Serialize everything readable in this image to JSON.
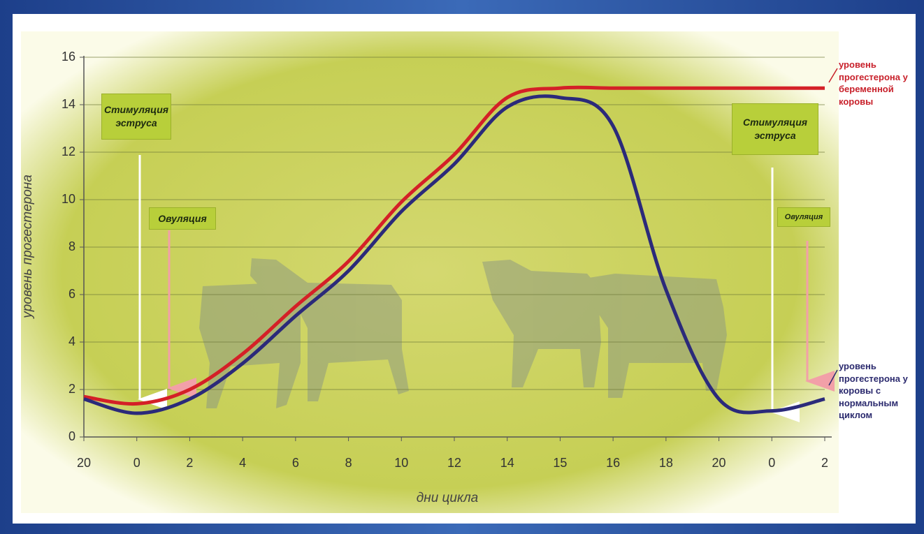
{
  "chart_data": {
    "type": "line",
    "y_label": "уровень прогестерона",
    "x_label": "дни цикла",
    "categories": [
      "20",
      "0",
      "2",
      "4",
      "6",
      "8",
      "10",
      "12",
      "14",
      "15",
      "16",
      "18",
      "20",
      "0",
      "2"
    ],
    "series": [
      {
        "name": "уровень прогестерона у беременной коровы",
        "color": "#d42027",
        "values": [
          1.7,
          1.4,
          2.0,
          3.5,
          5.5,
          7.4,
          9.9,
          11.9,
          14.3,
          14.7,
          14.7,
          14.7,
          14.7,
          14.7,
          14.7
        ]
      },
      {
        "name": "уровень прогестерона у коровы с нормальным циклом",
        "color": "#2b2a7a",
        "values": [
          1.6,
          1.0,
          1.6,
          3.1,
          5.1,
          7.0,
          9.5,
          11.5,
          13.9,
          14.3,
          13.1,
          6.2,
          1.6,
          1.1,
          1.6
        ]
      }
    ],
    "annotations": [
      "Стимуляция эструса",
      "Овуляция",
      "Стимуляция эструса",
      "Овуляция"
    ],
    "ylim": [
      0,
      16
    ],
    "yticks": [
      0,
      2,
      4,
      6,
      8,
      10,
      12,
      14,
      16
    ],
    "grid": true
  }
}
